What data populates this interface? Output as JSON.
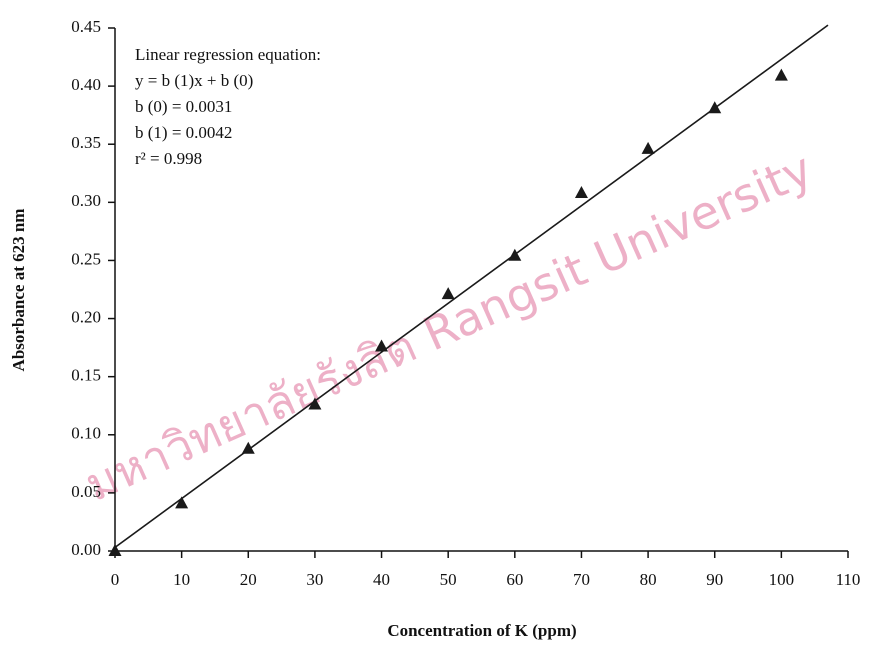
{
  "chart_data": {
    "type": "scatter",
    "x_label": "Concentration of K (ppm)",
    "y_label": "Absorbance at 623 nm",
    "annotations": [
      "Linear regression equation:",
      "y = b (1)x + b (0)",
      "b (0) = 0.0031",
      "b (1) = 0.0042",
      "r² = 0.998"
    ],
    "watermark": "มหาวิทยาลัยรังสิต Rangsit University",
    "x": [
      0,
      10,
      20,
      30,
      40,
      50,
      60,
      70,
      80,
      90,
      100
    ],
    "values": [
      0.0,
      0.041,
      0.088,
      0.126,
      0.176,
      0.221,
      0.254,
      0.308,
      0.346,
      0.381,
      0.409
    ],
    "color": "#1a1a1a",
    "fit": {
      "x": [
        0,
        107
      ],
      "values": [
        0.0031,
        0.4525
      ],
      "color": "#1a1a1a"
    },
    "xlim": [
      0,
      110
    ],
    "ylim": [
      0,
      0.45
    ],
    "xticks": [
      0,
      10,
      20,
      30,
      40,
      50,
      60,
      70,
      80,
      90,
      100,
      110
    ],
    "yticks": [
      {
        "value": 0,
        "label": "0.00"
      },
      0.05,
      {
        "value": 0.1,
        "label": "0.10"
      },
      0.15,
      {
        "value": 0.2,
        "label": "0.20"
      },
      0.25,
      {
        "value": 0.3,
        "label": "0.30"
      },
      0.35,
      {
        "value": 0.4,
        "label": "0.40"
      },
      0.45
    ],
    "grid": false
  }
}
